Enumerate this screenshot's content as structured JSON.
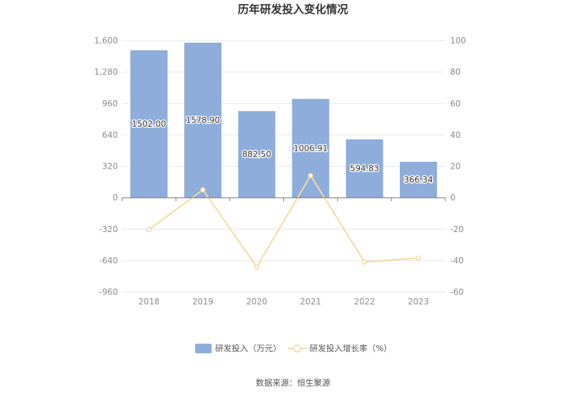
{
  "chart_data": {
    "type": "bar",
    "title": "历年研发投入变化情况",
    "categories": [
      "2018",
      "2019",
      "2020",
      "2021",
      "2022",
      "2023"
    ],
    "series": [
      {
        "name": "研发投入（万元）",
        "type": "bar",
        "axis": "left",
        "color": "#8eaddb",
        "values": [
          1502.0,
          1578.9,
          882.5,
          1006.91,
          594.83,
          366.34
        ],
        "labels": [
          "1502.00",
          "1578.90",
          "882.50",
          "1006.91",
          "594.83",
          "366.34"
        ]
      },
      {
        "name": "研发投入增长率（%）",
        "type": "line",
        "axis": "right",
        "color": "#f5d9a0",
        "values": [
          -20.3,
          5.1,
          -44.1,
          14.1,
          -40.9,
          -38.4
        ]
      }
    ],
    "y_left": {
      "ylim": [
        -960,
        1600
      ],
      "ticks": [
        "1,600",
        "1,280",
        "960",
        "640",
        "320",
        "0",
        "-320",
        "-640",
        "-960"
      ]
    },
    "y_right": {
      "ylim": [
        -60,
        100
      ],
      "ticks": [
        "100",
        "80",
        "60",
        "40",
        "20",
        "0",
        "-20",
        "-40",
        "-60"
      ]
    },
    "grid": true,
    "legend_position": "bottom"
  },
  "source_text": "数据来源：恒生聚源"
}
